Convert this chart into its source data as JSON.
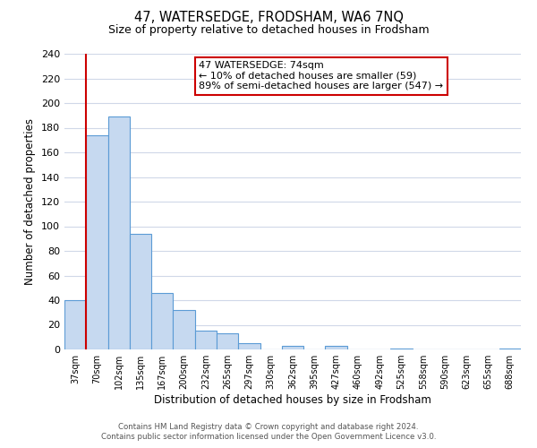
{
  "title": "47, WATERSEDGE, FRODSHAM, WA6 7NQ",
  "subtitle": "Size of property relative to detached houses in Frodsham",
  "xlabel": "Distribution of detached houses by size in Frodsham",
  "ylabel": "Number of detached properties",
  "bin_labels": [
    "37sqm",
    "70sqm",
    "102sqm",
    "135sqm",
    "167sqm",
    "200sqm",
    "232sqm",
    "265sqm",
    "297sqm",
    "330sqm",
    "362sqm",
    "395sqm",
    "427sqm",
    "460sqm",
    "492sqm",
    "525sqm",
    "558sqm",
    "590sqm",
    "623sqm",
    "655sqm",
    "688sqm"
  ],
  "bar_heights": [
    40,
    174,
    189,
    94,
    46,
    32,
    15,
    13,
    5,
    0,
    3,
    0,
    3,
    0,
    0,
    1,
    0,
    0,
    0,
    0,
    1
  ],
  "bar_color": "#c6d9f0",
  "bar_edge_color": "#5b9bd5",
  "vline_x": 1.0,
  "vline_color": "#cc0000",
  "ylim": [
    0,
    240
  ],
  "yticks": [
    0,
    20,
    40,
    60,
    80,
    100,
    120,
    140,
    160,
    180,
    200,
    220,
    240
  ],
  "annotation_title": "47 WATERSEDGE: 74sqm",
  "annotation_line1": "← 10% of detached houses are smaller (59)",
  "annotation_line2": "89% of semi-detached houses are larger (547) →",
  "annotation_box_color": "#ffffff",
  "annotation_box_edge": "#cc0000",
  "footer1": "Contains HM Land Registry data © Crown copyright and database right 2024.",
  "footer2": "Contains public sector information licensed under the Open Government Licence v3.0.",
  "background_color": "#ffffff",
  "grid_color": "#d0d8e8"
}
